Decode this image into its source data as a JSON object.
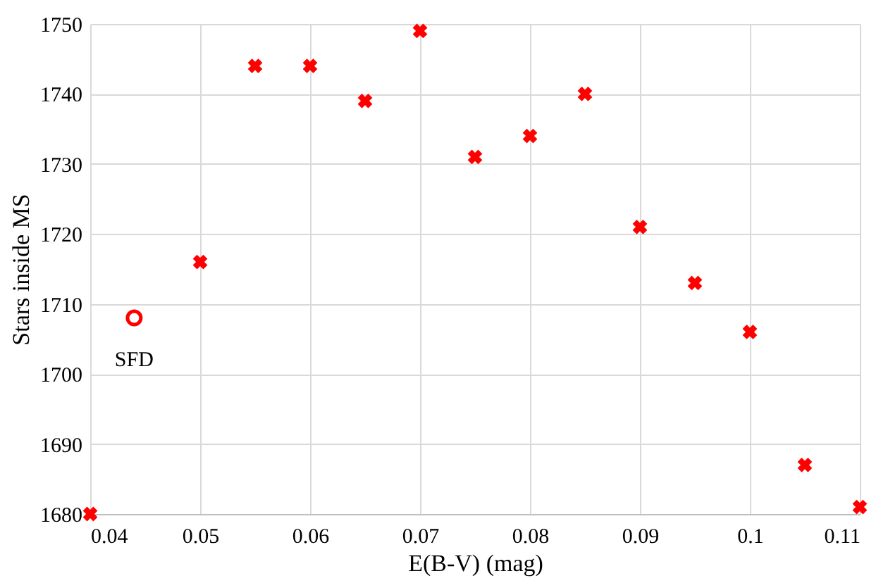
{
  "chart_data": {
    "type": "scatter",
    "xlabel": "E(B-V) (mag)",
    "ylabel": "Stars inside MS",
    "series": [
      {
        "color": "#ff0000",
        "marker": "cross",
        "x": [
          0.04,
          0.05,
          0.055,
          0.06,
          0.065,
          0.07,
          0.075,
          0.08,
          0.085,
          0.09,
          0.095,
          0.1,
          0.105,
          0.11
        ],
        "values": [
          1680,
          1716,
          1744,
          1744,
          1739,
          1749,
          1731,
          1734,
          1740,
          1721,
          1713,
          1706,
          1687,
          1681
        ]
      },
      {
        "color": "#ff0000",
        "marker": "circle",
        "x": [
          0.044
        ],
        "values": [
          1708
        ]
      }
    ],
    "annotations": [
      {
        "text": "SFD",
        "x": 0.044,
        "y": 1708
      }
    ],
    "xlim": [
      0.04,
      0.11
    ],
    "xticks": [
      0.04,
      0.05,
      0.06,
      0.07,
      0.08,
      0.09,
      0.1,
      0.11
    ],
    "ylim": [
      1680,
      1750
    ],
    "yticks": [
      1680,
      1690,
      1700,
      1710,
      1720,
      1730,
      1740,
      1750
    ],
    "grid": true
  }
}
